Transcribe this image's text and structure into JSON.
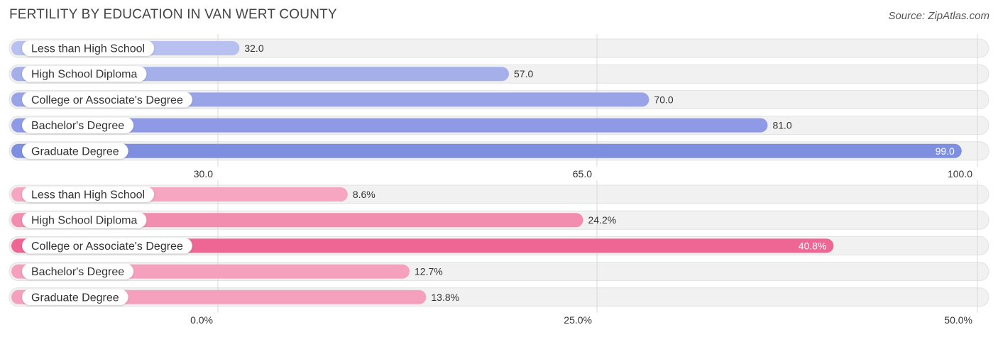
{
  "header": {
    "title": "FERTILITY BY EDUCATION IN VAN WERT COUNTY",
    "source": "Source: ZipAtlas.com"
  },
  "chart_data": [
    {
      "type": "bar",
      "orientation": "horizontal",
      "categories": [
        "Less than High School",
        "High School Diploma",
        "College or Associate's Degree",
        "Bachelor's Degree",
        "Graduate Degree"
      ],
      "values": [
        32.0,
        57.0,
        70.0,
        81.0,
        99.0
      ],
      "value_labels": [
        "32.0",
        "57.0",
        "70.0",
        "81.0",
        "99.0"
      ],
      "xlim": [
        30.0,
        100.0
      ],
      "ticks": [
        30.0,
        65.0,
        100.0
      ],
      "tick_labels": [
        "30.0",
        "65.0",
        "100.0"
      ],
      "colors": [
        "#b7c0ee",
        "#a5b0ea",
        "#98a4e7",
        "#8e9ae5",
        "#7f8fe0"
      ],
      "grid": true
    },
    {
      "type": "bar",
      "orientation": "horizontal",
      "categories": [
        "Less than High School",
        "High School Diploma",
        "College or Associate's Degree",
        "Bachelor's Degree",
        "Graduate Degree"
      ],
      "values": [
        8.6,
        24.2,
        40.8,
        12.7,
        13.8
      ],
      "value_labels": [
        "8.6%",
        "24.2%",
        "40.8%",
        "12.7%",
        "13.8%"
      ],
      "xlim": [
        0.0,
        50.0
      ],
      "ticks": [
        0.0,
        25.0,
        50.0
      ],
      "tick_labels": [
        "0.0%",
        "25.0%",
        "50.0%"
      ],
      "colors": [
        "#f6a6c0",
        "#f38daf",
        "#ee6693",
        "#f5a1bd",
        "#f5a1bd"
      ],
      "grid": true
    }
  ]
}
